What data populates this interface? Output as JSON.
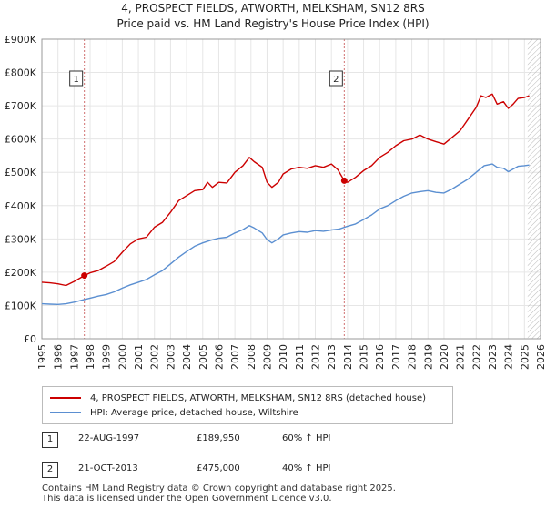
{
  "title_line1": "4, PROSPECT FIELDS, ATWORTH, MELKSHAM, SN12 8RS",
  "title_line2": "Price paid vs. HM Land Registry's House Price Index (HPI)",
  "colors": {
    "property": "#cc0000",
    "hpi": "#5b8fd1",
    "marker": "#cc0000",
    "vline": "#d07070",
    "hatch": "#b8b8b8",
    "grid": "#e6e6e6"
  },
  "legend": {
    "property_label": "4, PROSPECT FIELDS, ATWORTH, MELKSHAM, SN12 8RS (detached house)",
    "hpi_label": "HPI: Average price, detached house, Wiltshire"
  },
  "transactions": [
    {
      "num": "1",
      "date": "22-AUG-1997",
      "price": "£189,950",
      "hpi_delta": "60% ↑ HPI"
    },
    {
      "num": "2",
      "date": "21-OCT-2013",
      "price": "£475,000",
      "hpi_delta": "40% ↑ HPI"
    }
  ],
  "footer_line1": "Contains HM Land Registry data © Crown copyright and database right 2025.",
  "footer_line2": "This data is licensed under the Open Government Licence v3.0.",
  "chart_data": {
    "type": "line",
    "xlim": [
      1995,
      2026
    ],
    "ylim": [
      0,
      900000
    ],
    "y_ticks": [
      {
        "value": 0,
        "label": "£0"
      },
      {
        "value": 100000,
        "label": "£100K"
      },
      {
        "value": 200000,
        "label": "£200K"
      },
      {
        "value": 300000,
        "label": "£300K"
      },
      {
        "value": 400000,
        "label": "£400K"
      },
      {
        "value": 500000,
        "label": "£500K"
      },
      {
        "value": 600000,
        "label": "£600K"
      },
      {
        "value": 700000,
        "label": "£700K"
      },
      {
        "value": 800000,
        "label": "£800K"
      },
      {
        "value": 900000,
        "label": "£900K"
      }
    ],
    "x_ticks": [
      "1995",
      "1996",
      "1997",
      "1998",
      "1999",
      "2000",
      "2001",
      "2002",
      "2003",
      "2004",
      "2005",
      "2006",
      "2007",
      "2008",
      "2009",
      "2010",
      "2011",
      "2012",
      "2013",
      "2014",
      "2015",
      "2016",
      "2017",
      "2018",
      "2019",
      "2020",
      "2021",
      "2022",
      "2023",
      "2024",
      "2025",
      "2026"
    ],
    "grid": true,
    "hatched_after": 2025.2,
    "sales": [
      {
        "label": "1",
        "x": 1997.64,
        "y": 189950
      },
      {
        "label": "2",
        "x": 2013.8,
        "y": 475000
      }
    ],
    "series": [
      {
        "name": "4, PROSPECT FIELDS, ATWORTH, MELKSHAM, SN12 8RS (detached house)",
        "points": [
          [
            1995.0,
            170000
          ],
          [
            1995.5,
            168000
          ],
          [
            1996.0,
            165000
          ],
          [
            1996.5,
            160000
          ],
          [
            1997.0,
            172000
          ],
          [
            1997.64,
            189950
          ],
          [
            1998.0,
            198000
          ],
          [
            1998.5,
            205000
          ],
          [
            1999.0,
            218000
          ],
          [
            1999.5,
            232000
          ],
          [
            2000.0,
            260000
          ],
          [
            2000.5,
            285000
          ],
          [
            2001.0,
            300000
          ],
          [
            2001.5,
            305000
          ],
          [
            2002.0,
            335000
          ],
          [
            2002.5,
            350000
          ],
          [
            2003.0,
            380000
          ],
          [
            2003.5,
            415000
          ],
          [
            2004.0,
            430000
          ],
          [
            2004.5,
            445000
          ],
          [
            2005.0,
            448000
          ],
          [
            2005.3,
            470000
          ],
          [
            2005.6,
            455000
          ],
          [
            2006.0,
            470000
          ],
          [
            2006.5,
            468000
          ],
          [
            2007.0,
            500000
          ],
          [
            2007.5,
            520000
          ],
          [
            2007.9,
            545000
          ],
          [
            2008.2,
            532000
          ],
          [
            2008.7,
            515000
          ],
          [
            2009.0,
            470000
          ],
          [
            2009.3,
            455000
          ],
          [
            2009.7,
            470000
          ],
          [
            2010.0,
            495000
          ],
          [
            2010.5,
            510000
          ],
          [
            2011.0,
            515000
          ],
          [
            2011.5,
            512000
          ],
          [
            2012.0,
            520000
          ],
          [
            2012.5,
            515000
          ],
          [
            2013.0,
            525000
          ],
          [
            2013.4,
            508000
          ],
          [
            2013.8,
            475000
          ],
          [
            2014.0,
            470000
          ],
          [
            2014.5,
            485000
          ],
          [
            2015.0,
            505000
          ],
          [
            2015.5,
            520000
          ],
          [
            2016.0,
            545000
          ],
          [
            2016.5,
            560000
          ],
          [
            2017.0,
            580000
          ],
          [
            2017.5,
            595000
          ],
          [
            2018.0,
            600000
          ],
          [
            2018.5,
            612000
          ],
          [
            2019.0,
            600000
          ],
          [
            2019.5,
            592000
          ],
          [
            2020.0,
            585000
          ],
          [
            2020.5,
            605000
          ],
          [
            2021.0,
            625000
          ],
          [
            2021.5,
            660000
          ],
          [
            2022.0,
            695000
          ],
          [
            2022.3,
            730000
          ],
          [
            2022.6,
            725000
          ],
          [
            2023.0,
            735000
          ],
          [
            2023.3,
            705000
          ],
          [
            2023.7,
            712000
          ],
          [
            2024.0,
            692000
          ],
          [
            2024.3,
            705000
          ],
          [
            2024.6,
            722000
          ],
          [
            2025.0,
            725000
          ],
          [
            2025.3,
            730000
          ]
        ]
      },
      {
        "name": "HPI: Average price, detached house, Wiltshire",
        "points": [
          [
            1995.0,
            105000
          ],
          [
            1995.5,
            104000
          ],
          [
            1996.0,
            103000
          ],
          [
            1996.5,
            105000
          ],
          [
            1997.0,
            110000
          ],
          [
            1997.64,
            118000
          ],
          [
            1998.0,
            122000
          ],
          [
            1998.5,
            128000
          ],
          [
            1999.0,
            133000
          ],
          [
            1999.5,
            141000
          ],
          [
            2000.0,
            152000
          ],
          [
            2000.5,
            162000
          ],
          [
            2001.0,
            170000
          ],
          [
            2001.5,
            178000
          ],
          [
            2002.0,
            192000
          ],
          [
            2002.5,
            205000
          ],
          [
            2003.0,
            225000
          ],
          [
            2003.5,
            245000
          ],
          [
            2004.0,
            262000
          ],
          [
            2004.5,
            278000
          ],
          [
            2005.0,
            288000
          ],
          [
            2005.5,
            296000
          ],
          [
            2006.0,
            302000
          ],
          [
            2006.5,
            305000
          ],
          [
            2007.0,
            318000
          ],
          [
            2007.5,
            328000
          ],
          [
            2007.9,
            340000
          ],
          [
            2008.2,
            333000
          ],
          [
            2008.7,
            318000
          ],
          [
            2009.0,
            298000
          ],
          [
            2009.3,
            288000
          ],
          [
            2009.7,
            300000
          ],
          [
            2010.0,
            312000
          ],
          [
            2010.5,
            318000
          ],
          [
            2011.0,
            322000
          ],
          [
            2011.5,
            320000
          ],
          [
            2012.0,
            325000
          ],
          [
            2012.5,
            323000
          ],
          [
            2013.0,
            327000
          ],
          [
            2013.5,
            330000
          ],
          [
            2014.0,
            338000
          ],
          [
            2014.5,
            345000
          ],
          [
            2015.0,
            358000
          ],
          [
            2015.5,
            372000
          ],
          [
            2016.0,
            390000
          ],
          [
            2016.5,
            400000
          ],
          [
            2017.0,
            415000
          ],
          [
            2017.5,
            428000
          ],
          [
            2018.0,
            438000
          ],
          [
            2018.5,
            442000
          ],
          [
            2019.0,
            445000
          ],
          [
            2019.5,
            440000
          ],
          [
            2020.0,
            438000
          ],
          [
            2020.5,
            450000
          ],
          [
            2021.0,
            465000
          ],
          [
            2021.5,
            480000
          ],
          [
            2022.0,
            500000
          ],
          [
            2022.5,
            520000
          ],
          [
            2023.0,
            525000
          ],
          [
            2023.3,
            515000
          ],
          [
            2023.7,
            512000
          ],
          [
            2024.0,
            502000
          ],
          [
            2024.3,
            510000
          ],
          [
            2024.6,
            518000
          ],
          [
            2025.0,
            520000
          ],
          [
            2025.3,
            522000
          ]
        ]
      }
    ]
  }
}
